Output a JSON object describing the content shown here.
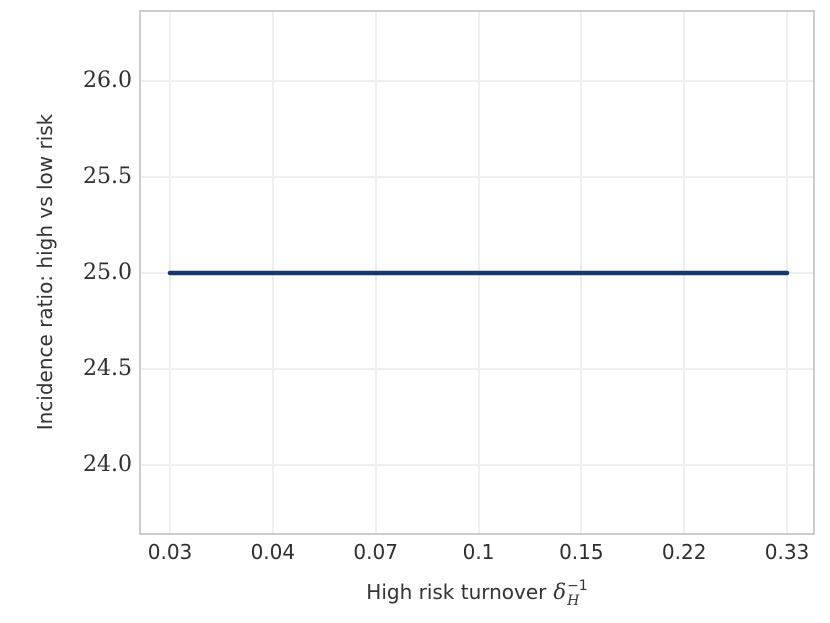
{
  "figure": {
    "background": "#ffffff"
  },
  "chart_data": {
    "type": "line",
    "title": "",
    "ylabel": "Incidence ratio: high vs low risk",
    "xlabel_text": "High risk turnover",
    "xlabel_math": {
      "symbol": "δ",
      "sub": "H",
      "sup": "−1"
    },
    "categories": [
      "0.03",
      "0.04",
      "0.07",
      "0.1",
      "0.15",
      "0.22",
      "0.33"
    ],
    "series": [
      {
        "name": "incidence-ratio",
        "values": [
          25.0,
          25.0,
          25.0,
          25.0,
          25.0,
          25.0,
          25.0
        ],
        "color": "#16396c"
      }
    ],
    "ytick_labels": [
      "26.0",
      "25.5",
      "25.0",
      "24.5",
      "24.0"
    ],
    "ytick_values": [
      26.0,
      25.5,
      25.0,
      24.5,
      24.0
    ],
    "ylim": [
      23.645,
      26.36
    ],
    "grid": true,
    "legend": false,
    "colors": {
      "grid": "#efefef",
      "spine": "#cccccc",
      "text": "#333333",
      "line": "#16396c"
    }
  }
}
